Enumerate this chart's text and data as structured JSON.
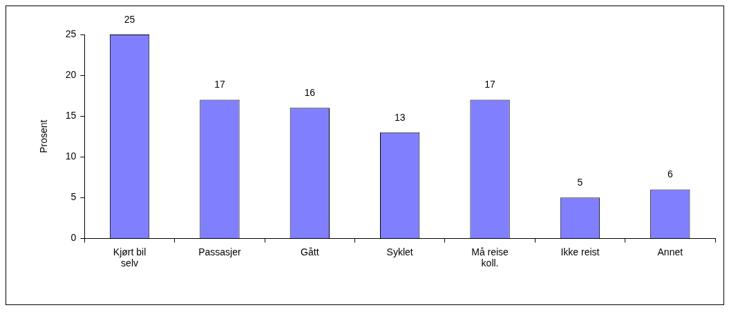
{
  "chart_data": {
    "type": "bar",
    "ylabel": "Prosent",
    "categories": [
      "Kjørt bil selv",
      "Passasjer",
      "Gått",
      "Syklet",
      "Må reise koll.",
      "Ikke reist",
      "Annet"
    ],
    "values": [
      25,
      17,
      16,
      13,
      17,
      5,
      6
    ],
    "color": "#8080ff",
    "ylim": [
      0,
      25
    ],
    "yticks": [
      0,
      5,
      10,
      15,
      20,
      25
    ],
    "grid": false,
    "legend": false,
    "data_labels": true
  }
}
